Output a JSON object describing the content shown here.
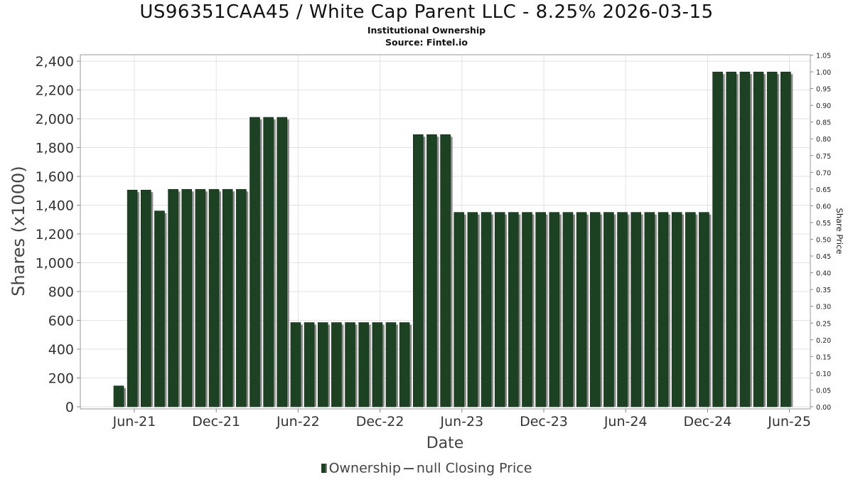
{
  "chart_data": {
    "type": "bar",
    "title": "US96351CAA45 / White Cap Parent LLC - 8.25% 2026-03-15",
    "subtitle": "Institutional Ownership",
    "source": "Source: Fintel.io",
    "xlabel": "Date",
    "ylabel": "Shares (x1000)",
    "y2label": "Share Price",
    "ylim": [
      0,
      2450
    ],
    "y2lim": [
      0,
      1.05
    ],
    "yticks": [
      "0",
      "200",
      "400",
      "600",
      "800",
      "1,000",
      "1,200",
      "1,400",
      "1,600",
      "1,800",
      "2,000",
      "2,200",
      "2,400"
    ],
    "y2ticks": [
      "0.00",
      "0.05",
      "0.10",
      "0.15",
      "0.20",
      "0.25",
      "0.30",
      "0.35",
      "0.40",
      "0.45",
      "0.50",
      "0.55",
      "0.60",
      "0.65",
      "0.70",
      "0.75",
      "0.80",
      "0.85",
      "0.90",
      "0.95",
      "1.00",
      "1.05"
    ],
    "xticks": [
      "Jun-21",
      "Dec-21",
      "Jun-22",
      "Dec-22",
      "Jun-23",
      "Dec-23",
      "Jun-24",
      "Dec-24",
      "Jun-25"
    ],
    "grid": true,
    "legend_position": "bottom",
    "series": [
      {
        "name": "Ownership",
        "color": "#1d4223",
        "values": [
          145,
          1505,
          1505,
          1360,
          1510,
          1510,
          1510,
          1510,
          1510,
          1510,
          2010,
          2010,
          2010,
          585,
          585,
          585,
          585,
          585,
          585,
          585,
          585,
          585,
          1890,
          1890,
          1890,
          1350,
          1350,
          1350,
          1350,
          1350,
          1350,
          1350,
          1350,
          1350,
          1350,
          1350,
          1350,
          1350,
          1350,
          1350,
          1350,
          1350,
          1350,
          1350,
          2325,
          2325,
          2325,
          2325,
          2325,
          2325
        ]
      }
    ],
    "legend": [
      {
        "label": "Ownership",
        "kind": "bar",
        "color": "#1d4223"
      },
      {
        "label": "null Closing Price",
        "kind": "line",
        "color": "#555555"
      }
    ]
  }
}
